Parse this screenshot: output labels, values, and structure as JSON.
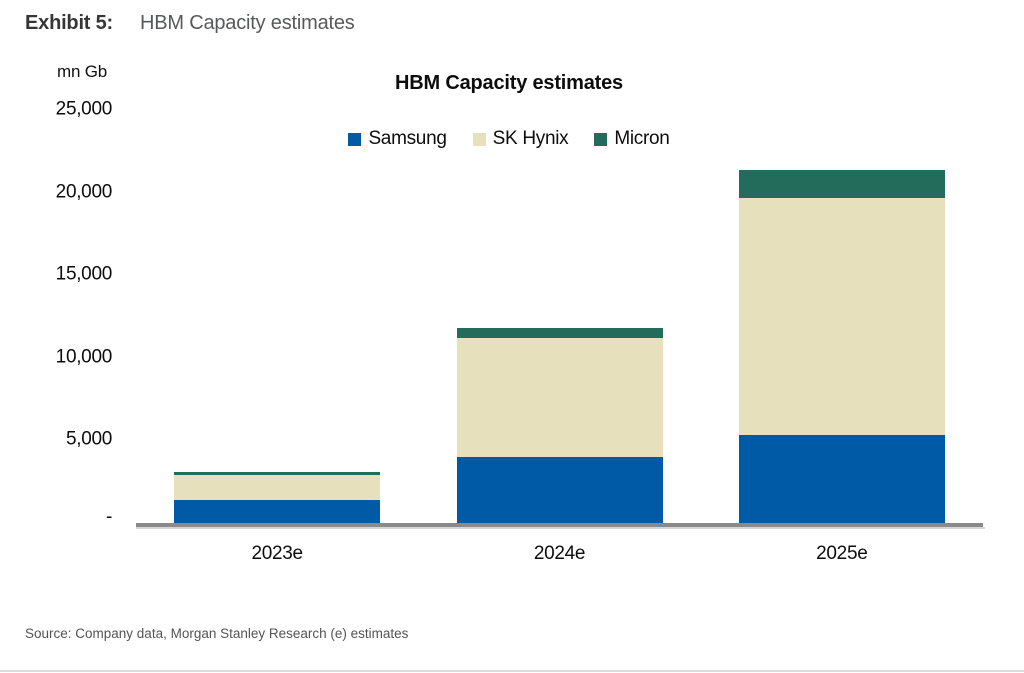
{
  "header": {
    "exhibit_label": "Exhibit 5:",
    "exhibit_title": "HBM Capacity estimates"
  },
  "chart_data": {
    "type": "bar",
    "stacked": true,
    "title": "HBM Capacity estimates",
    "unit_label": "mn Gb",
    "categories": [
      "2023e",
      "2024e",
      "2025e"
    ],
    "series": [
      {
        "name": "Samsung",
        "color": "#005AA5",
        "values": [
          1400,
          4000,
          5300
        ]
      },
      {
        "name": "SK Hynix",
        "color": "#E7E0BD",
        "values": [
          1500,
          7200,
          14350
        ]
      },
      {
        "name": "Micron",
        "color": "#236C5B",
        "values": [
          200,
          600,
          1750
        ]
      }
    ],
    "stack_totals": [
      3100,
      11800,
      21400
    ],
    "ylim": [
      0,
      25000
    ],
    "yticks": [
      {
        "value": 25000,
        "label": "25,000"
      },
      {
        "value": 20000,
        "label": "20,000"
      },
      {
        "value": 15000,
        "label": "15,000"
      },
      {
        "value": 10000,
        "label": "10,000"
      },
      {
        "value": 5000,
        "label": "5,000"
      },
      {
        "value": 0,
        "label": "-"
      }
    ],
    "legend_position": "top",
    "grid": false,
    "axis_line_color": "#8A8A8A"
  },
  "footer": {
    "source": "Source: Company data, Morgan Stanley Research (e) estimates"
  }
}
